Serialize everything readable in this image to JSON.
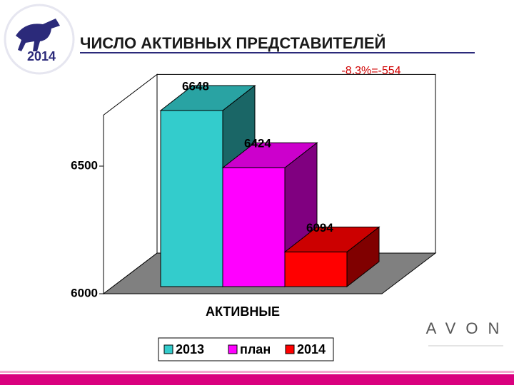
{
  "logo_text": "2014",
  "brand": "AVON",
  "chart_data": {
    "type": "bar3d",
    "title": "ЧИСЛО АКТИВНЫХ  ПРЕДСТАВИТЕЛЕЙ",
    "annotation": "-8,3%=-554",
    "categories": [
      "АКТИВНЫЕ"
    ],
    "series": [
      {
        "name": "2013",
        "color": "#33cccc",
        "values": [
          6648
        ]
      },
      {
        "name": "план",
        "color": "#ff00ff",
        "values": [
          6424
        ]
      },
      {
        "name": "2014",
        "color": "#ff0000",
        "values": [
          6094
        ]
      }
    ],
    "ylim": [
      6000,
      6700
    ],
    "yticks": [
      6000,
      6500
    ],
    "legend": "bottom"
  }
}
